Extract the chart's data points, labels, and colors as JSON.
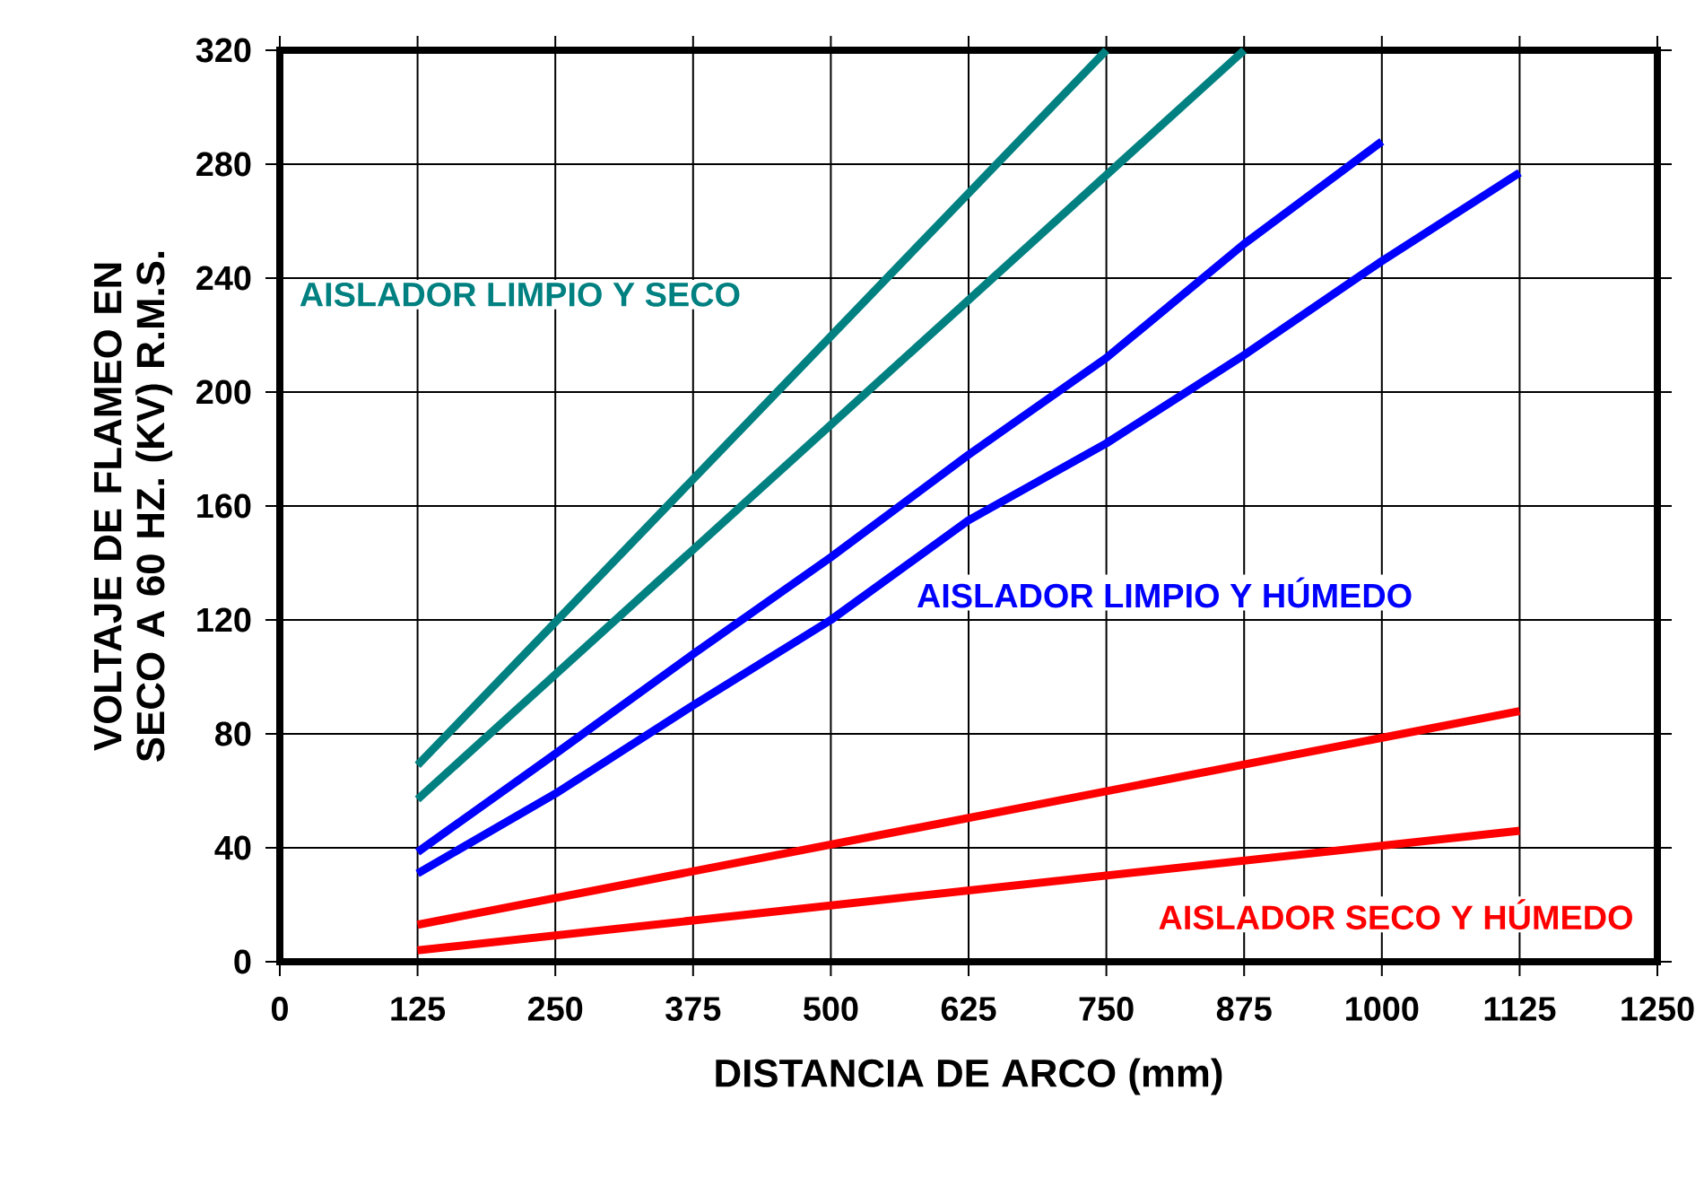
{
  "chart_data": {
    "type": "line",
    "xlabel": "DISTANCIA DE ARCO (mm)",
    "ylabel": "VOLTAJE DE FLAMEO EN SECO A 60 HZ. (KV) R.M.S.",
    "series": [
      {
        "color": "#008080",
        "x": [
          125,
          750
        ],
        "values": [
          69,
          320
        ]
      },
      {
        "color": "#008080",
        "x": [
          125,
          875
        ],
        "values": [
          57,
          320
        ]
      },
      {
        "color": "#0000ff",
        "x": [
          125,
          250,
          375,
          500,
          625,
          750,
          875,
          1000
        ],
        "values": [
          38.5,
          73,
          108,
          142,
          178,
          212,
          252,
          288
        ]
      },
      {
        "color": "#0000ff",
        "x": [
          125,
          250,
          375,
          500,
          625,
          750,
          875,
          1000,
          1125
        ],
        "values": [
          31,
          59,
          90,
          120,
          155,
          182,
          213,
          246,
          277
        ]
      },
      {
        "color": "#ff0000",
        "x": [
          125,
          1125
        ],
        "values": [
          13,
          88
        ]
      },
      {
        "color": "#ff0000",
        "x": [
          125,
          1125
        ],
        "values": [
          4,
          46
        ]
      }
    ],
    "annotations": [
      "AISLADOR LIMPIO Y SECO",
      "AISLADOR LIMPIO Y HÚMEDO",
      "AISLADOR SECO Y HÚMEDO"
    ],
    "xlim": [
      0,
      1250
    ],
    "ylim": [
      0,
      320
    ],
    "xticks": [
      0,
      125,
      250,
      375,
      500,
      625,
      750,
      875,
      1000,
      1125,
      1250
    ],
    "yticks": [
      0,
      40,
      80,
      120,
      160,
      200,
      240,
      280,
      320
    ],
    "grid": true,
    "marker": "none",
    "line_style": "solid"
  }
}
